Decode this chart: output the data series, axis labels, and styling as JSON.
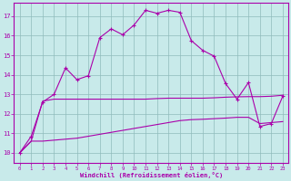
{
  "xlabel": "Windchill (Refroidissement éolien,°C)",
  "background_color": "#c8eaea",
  "grid_color": "#8fbcbc",
  "line_color": "#aa00aa",
  "xlim": [
    -0.5,
    23.5
  ],
  "ylim": [
    9.5,
    17.7
  ],
  "xticks": [
    0,
    1,
    2,
    3,
    4,
    5,
    6,
    7,
    8,
    9,
    10,
    11,
    12,
    13,
    14,
    15,
    16,
    17,
    18,
    19,
    20,
    21,
    22,
    23
  ],
  "yticks": [
    10,
    11,
    12,
    13,
    14,
    15,
    16,
    17
  ],
  "curve1_x": [
    0,
    1,
    2,
    3,
    4,
    5,
    6,
    7,
    8,
    9,
    10,
    11,
    12,
    13,
    14,
    15,
    16,
    17,
    18,
    19,
    20,
    21,
    22,
    23
  ],
  "curve1_y": [
    10.0,
    10.85,
    12.6,
    13.0,
    14.35,
    13.75,
    13.95,
    15.9,
    16.35,
    16.05,
    16.55,
    17.3,
    17.15,
    17.3,
    17.2,
    15.75,
    15.25,
    14.95,
    13.55,
    12.75,
    13.6,
    11.35,
    11.5,
    12.9
  ],
  "curve2_x": [
    0,
    1,
    2,
    3,
    4,
    5,
    6,
    7,
    8,
    9,
    10,
    11,
    12,
    13,
    14,
    15,
    16,
    17,
    18,
    19,
    20,
    21,
    22,
    23
  ],
  "curve2_y": [
    10.0,
    10.6,
    12.65,
    12.75,
    12.75,
    12.75,
    12.75,
    12.75,
    12.75,
    12.75,
    12.75,
    12.75,
    12.78,
    12.8,
    12.8,
    12.8,
    12.8,
    12.82,
    12.85,
    12.87,
    12.88,
    12.88,
    12.9,
    12.95
  ],
  "curve3_x": [
    0,
    1,
    2,
    3,
    4,
    5,
    6,
    7,
    8,
    9,
    10,
    11,
    12,
    13,
    14,
    15,
    16,
    17,
    18,
    19,
    20,
    21,
    22,
    23
  ],
  "curve3_y": [
    10.0,
    10.6,
    10.6,
    10.65,
    10.7,
    10.75,
    10.85,
    10.95,
    11.05,
    11.15,
    11.25,
    11.35,
    11.45,
    11.55,
    11.65,
    11.7,
    11.72,
    11.75,
    11.78,
    11.82,
    11.82,
    11.5,
    11.55,
    11.6
  ]
}
